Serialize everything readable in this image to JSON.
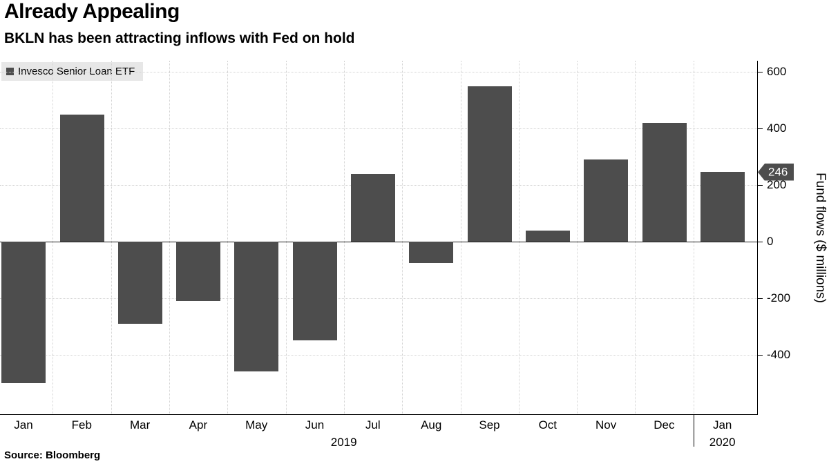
{
  "header": {
    "title": "Already Appealing",
    "subtitle": "BKLN has been attracting inflows with Fed on hold"
  },
  "legend": {
    "label": "Invesco Senior Loan ETF",
    "swatch_color": "#4d4d4d"
  },
  "marker": {
    "value": 246,
    "label": "246",
    "background": "#4d4d4d",
    "text_color": "#ffffff"
  },
  "y_axis_title": "Fund flows ($ millions)",
  "source": "Source:  Bloomberg",
  "chart_data": {
    "type": "bar",
    "categories": [
      "Jan",
      "Feb",
      "Mar",
      "Apr",
      "May",
      "Jun",
      "Jul",
      "Aug",
      "Sep",
      "Oct",
      "Nov",
      "Dec",
      "Jan"
    ],
    "values": [
      -500,
      450,
      -290,
      -210,
      -460,
      -350,
      240,
      -75,
      550,
      40,
      290,
      420,
      246
    ],
    "series_name": "Invesco Senior Loan ETF",
    "title": "Already Appealing",
    "subtitle": "BKLN has been attracting inflows with Fed on hold",
    "xlabel": "",
    "ylabel": "Fund flows ($ millions)",
    "ylim": [
      -610,
      640
    ],
    "yticks": [
      600,
      400,
      200,
      0,
      -200,
      -400
    ],
    "year_labels": [
      {
        "label": "2019",
        "x_slot": 6.0
      },
      {
        "label": "2020",
        "x_slot": 12.5
      }
    ],
    "year_tick_slot": 12.0,
    "bar_color": "#4d4d4d",
    "grid": "dotted",
    "legend_position": "top-left",
    "axis_position": "right"
  }
}
